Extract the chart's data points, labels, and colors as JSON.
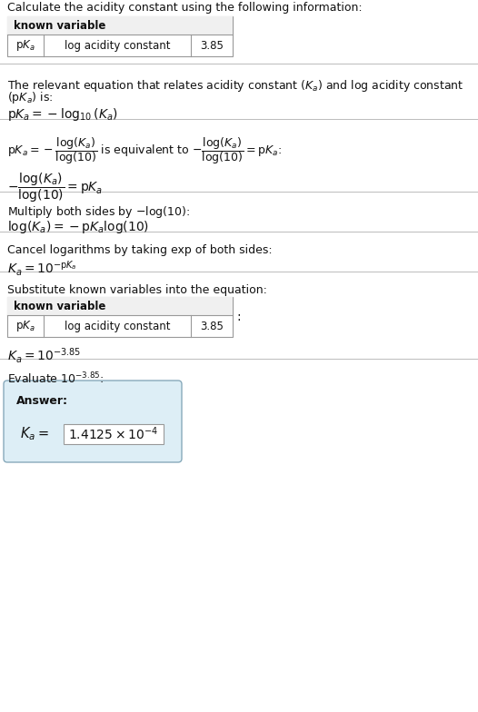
{
  "title": "Calculate the acidity constant using the following information:",
  "t1_header": "known variable",
  "t1_col1": "pK_a",
  "t1_col2": "log acidity constant",
  "t1_col3": "3.85",
  "s2_text": "The relevant equation that relates acidity constant ($K_a$) and log acidity constant\n($\\mathrm{p}K_a$) is:",
  "s2_eq": "$\\mathrm{p}K_a = -\\log_{10}(K_a)$",
  "s3_line1a": "$\\mathrm{p}K_a = -\\dfrac{\\log(K_a)}{\\log(10)}$",
  "s3_line1b": "is equivalent to",
  "s3_line1c": "$-\\dfrac{\\log(K_a)}{\\log(10)} = \\mathrm{p}K_a$:",
  "s3_line2": "$-\\dfrac{\\log(K_a)}{\\log(10)} = \\mathrm{p}K_a$",
  "s4_line1": "Multiply both sides by $-\\log(10)$:",
  "s4_line2": "$\\log(K_a) = -\\mathrm{p}K_a \\log(10)$",
  "s5_line1": "Cancel logarithms by taking exp of both sides:",
  "s5_line2": "$K_a = 10^{-\\mathrm{p}K_a}$",
  "s6_line1": "Substitute known variables into the equation:",
  "t2_header": "known variable",
  "t2_col1": "pK_a",
  "t2_col2": "log acidity constant",
  "t2_col3": "3.85",
  "s6_eq": "$K_a = 10^{-3.85}$",
  "s7_line1": "Evaluate $10^{-3.85}$:",
  "ans_label": "Answer:",
  "ans_eq": "$K_a = $",
  "ans_val": "$1.4125\\times10^{-4}$",
  "bg": "#ffffff",
  "ans_bg": "#ddeef6",
  "border": "#999999",
  "sep": "#bbbbbb",
  "tc": "#111111",
  "table_header_bg": "#f0f0f0"
}
